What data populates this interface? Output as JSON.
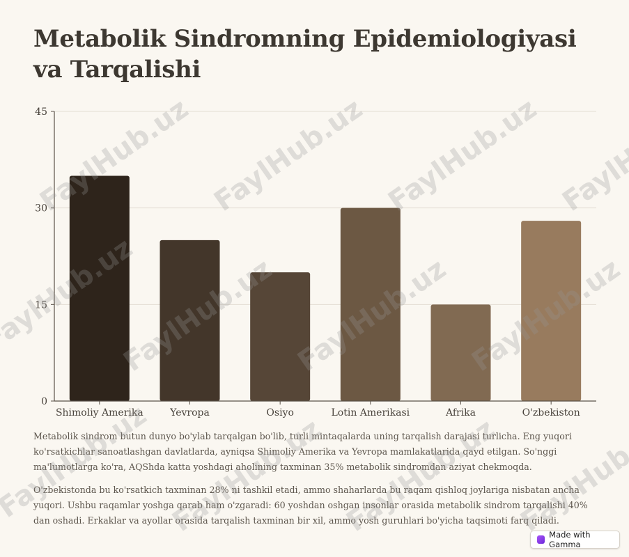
{
  "title": "Metabolik Sindromning Epidemiologiyasi va Tarqalishi",
  "chart_data": {
    "type": "bar",
    "categories": [
      "Shimoliy Amerika",
      "Yevropa",
      "Osiyo",
      "Lotin Amerikasi",
      "Afrika",
      "O'zbekiston"
    ],
    "values": [
      35,
      25,
      20,
      30,
      15,
      28
    ],
    "ylim": [
      0,
      45
    ],
    "yticks": [
      0,
      15,
      30,
      45
    ],
    "grid": true,
    "colors": [
      "#2e241b",
      "#43362a",
      "#564637",
      "#6c5843",
      "#816a52",
      "#987b5e"
    ]
  },
  "paragraphs": [
    "Metabolik sindrom butun dunyo bo'ylab tarqalgan bo'lib, turli mintaqalarda uning tarqalish darajasi turlicha. Eng yuqori ko'rsatkichlar sanoatlashgan davlatlarda, ayniqsa Shimoliy Amerika va Yevropa mamlakatlarida qayd etilgan. So'nggi ma'lumotlarga ko'ra, AQShda katta yoshdagi aholining taxminan 35% metabolik sindromdan aziyat chekmoqda.",
    "O'zbekistonda bu ko'rsatkich taxminan 28% ni tashkil etadi, ammo shaharlarda bu raqam qishloq joylariga nisbatan ancha yuqori. Ushbu raqamlar yoshga qarab ham o'zgaradi: 60 yoshdan oshgan insonlar orasida metabolik sindrom tarqalishi 40% dan oshadi. Erkaklar va ayollar orasida tarqalish taxminan bir xil, ammo yosh guruhlari bo'yicha taqsimoti farq qiladi."
  ],
  "badge": {
    "label": "Made with Gamma",
    "icon": "gamma-logo-icon"
  },
  "watermark": "FaylHub.uz"
}
